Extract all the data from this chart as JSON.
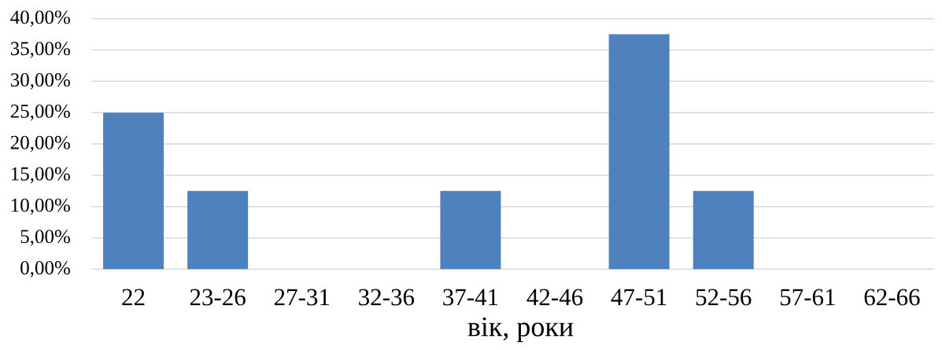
{
  "chart_data": {
    "type": "bar",
    "xlabel": "вік, роки",
    "categories": [
      "22",
      "23-26",
      "27-31",
      "32-36",
      "37-41",
      "42-46",
      "47-51",
      "52-56",
      "57-61",
      "62-66"
    ],
    "values": [
      25,
      12.5,
      0,
      0,
      12.5,
      0,
      37.5,
      12.5,
      0,
      0
    ],
    "color": "#4f81bd",
    "ylim": [
      0,
      40
    ],
    "yticks": [
      {
        "value": 0,
        "label": "0,00%"
      },
      {
        "value": 5,
        "label": "5,00%"
      },
      {
        "value": 10,
        "label": "10,00%"
      },
      {
        "value": 15,
        "label": "15,00%"
      },
      {
        "value": 20,
        "label": "20,00%"
      },
      {
        "value": 25,
        "label": "25,00%"
      },
      {
        "value": 30,
        "label": "30,00%"
      },
      {
        "value": 35,
        "label": "35,00%"
      },
      {
        "value": 40,
        "label": "40,00%"
      }
    ],
    "grid": "y"
  }
}
